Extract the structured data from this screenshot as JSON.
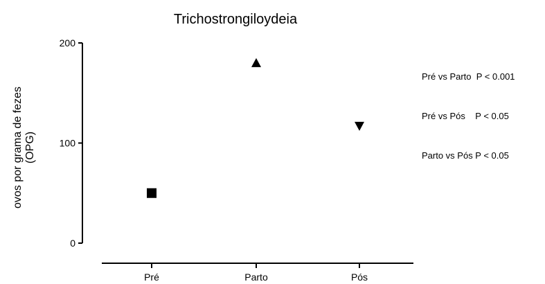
{
  "chart_data": {
    "type": "scatter",
    "title": "Trichostrongiloydeia",
    "ylabel_lines": [
      "ovos por grama de fezes",
      "(OPG)"
    ],
    "xlabel": "",
    "categories": [
      "Pré",
      "Parto",
      "Pós"
    ],
    "ylim": [
      0,
      200
    ],
    "yticks": [
      0,
      100,
      200
    ],
    "points": [
      {
        "category": "Pré",
        "value": 50,
        "marker": "square"
      },
      {
        "category": "Parto",
        "value": 180,
        "marker": "triangle-up"
      },
      {
        "category": "Pós",
        "value": 117,
        "marker": "triangle-down"
      }
    ],
    "grid": false,
    "annotations": [
      "Pré vs Parto  P < 0.001",
      "Pré vs Pós    P < 0.05",
      "Parto vs Pós P < 0.05"
    ]
  }
}
